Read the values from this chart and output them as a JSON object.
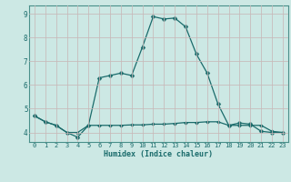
{
  "xlabel": "Humidex (Indice chaleur)",
  "bg_color": "#cce8e4",
  "grid_color": "#b0d4d0",
  "line_color": "#1a6b6b",
  "spine_color": "#4a8f8a",
  "line1": [
    4.7,
    4.45,
    4.3,
    4.0,
    3.8,
    4.3,
    6.3,
    6.4,
    6.5,
    6.4,
    7.6,
    8.88,
    8.78,
    8.82,
    8.45,
    7.3,
    6.5,
    5.2,
    4.3,
    4.4,
    4.35,
    4.05,
    4.0,
    4.0
  ],
  "line2": [
    4.7,
    4.45,
    4.3,
    4.0,
    4.0,
    4.3,
    4.3,
    4.3,
    4.3,
    4.32,
    4.32,
    4.35,
    4.35,
    4.38,
    4.42,
    4.42,
    4.45,
    4.45,
    4.3,
    4.3,
    4.3,
    4.3,
    4.05,
    4.0
  ],
  "xlim_min": -0.5,
  "xlim_max": 23.5,
  "ylim_min": 3.6,
  "ylim_max": 9.35,
  "yticks": [
    4,
    5,
    6,
    7,
    8,
    9
  ],
  "xticks": [
    0,
    1,
    2,
    3,
    4,
    5,
    6,
    7,
    8,
    9,
    10,
    11,
    12,
    13,
    14,
    15,
    16,
    17,
    18,
    19,
    20,
    21,
    22,
    23
  ],
  "xtick_labels": [
    "0",
    "1",
    "2",
    "3",
    "4",
    "5",
    "6",
    "7",
    "8",
    "9",
    "10",
    "11",
    "12",
    "13",
    "14",
    "15",
    "16",
    "17",
    "18",
    "19",
    "20",
    "21",
    "22",
    "23"
  ],
  "tick_fontsize": 5.0,
  "xlabel_fontsize": 6.0,
  "ytick_fontsize": 5.5,
  "marker_size": 2.5,
  "linewidth": 0.9
}
